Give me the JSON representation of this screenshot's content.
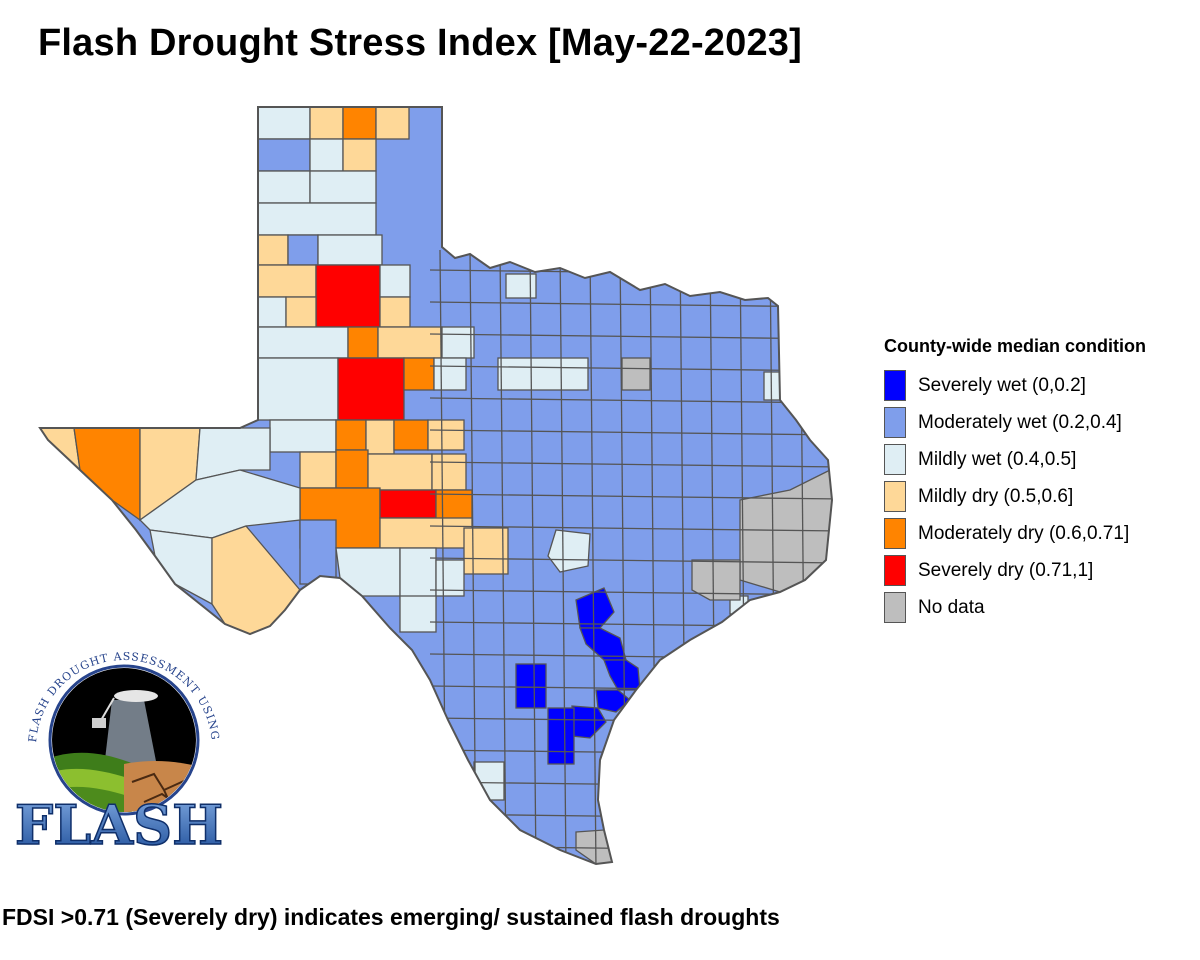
{
  "title": "Flash Drought Stress Index [May-22-2023]",
  "legend": {
    "title": "County-wide median condition",
    "items": [
      {
        "label": "Severely wet (0,0.2]",
        "color": "#0000ff"
      },
      {
        "label": "Moderately wet (0.2,0.4]",
        "color": "#7f9eeb"
      },
      {
        "label": "Mildly wet (0.4,0.5]",
        "color": "#dfeef4"
      },
      {
        "label": "Mildly dry (0.5,0.6]",
        "color": "#fed898"
      },
      {
        "label": "Moderately dry (0.6,0.71]",
        "color": "#ff8400"
      },
      {
        "label": "Severely dry (0.71,1]",
        "color": "#ff0000"
      },
      {
        "label": "No data",
        "color": "#bebebe"
      }
    ]
  },
  "footer": "FDSI >0.71 (Severely dry) indicates emerging/ sustained flash droughts",
  "logo": {
    "ring_text": "FLASH DROUGHT ASSESSMENT USING SMAP HYDROLOGY",
    "wordmark": "FLASH"
  },
  "map": {
    "region": "Texas",
    "county_border_color": "#555555",
    "default_category": "Moderately wet (0.2,0.4]"
  }
}
